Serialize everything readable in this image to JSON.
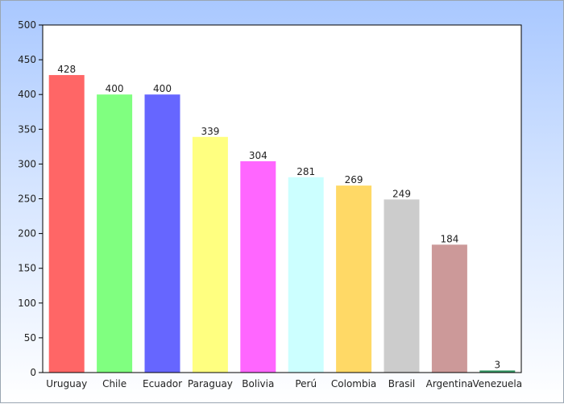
{
  "chart_data": {
    "type": "bar",
    "title": "",
    "xlabel": "",
    "ylabel": "",
    "categories": [
      "Uruguay",
      "Chile",
      "Ecuador",
      "Paraguay",
      "Bolivia",
      "Perú",
      "Colombia",
      "Brasil",
      "Argentina",
      "Venezuela"
    ],
    "values": [
      428,
      400,
      400,
      339,
      304,
      281,
      269,
      249,
      184,
      3
    ],
    "colors": [
      "#ff6666",
      "#80ff80",
      "#6666ff",
      "#ffff80",
      "#ff66ff",
      "#ccffff",
      "#ffd966",
      "#cccccc",
      "#cc9999",
      "#339966"
    ],
    "ylim": [
      0,
      500
    ],
    "yticks": [
      0,
      50,
      100,
      150,
      200,
      250,
      300,
      350,
      400,
      450,
      500
    ],
    "grid": false,
    "legend": "none",
    "data_labels": true,
    "plot_background": "#ffffff",
    "page_background": "#c4dafe"
  }
}
